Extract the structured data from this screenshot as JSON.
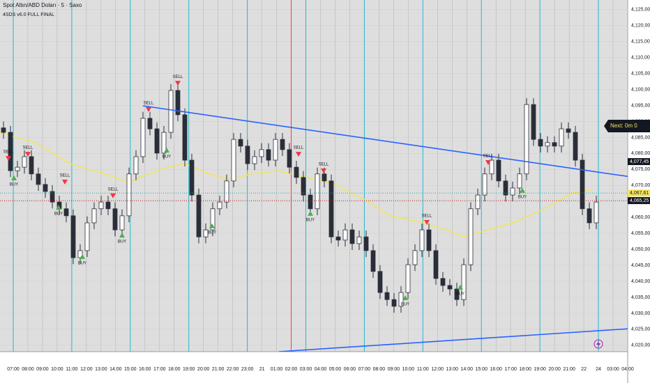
{
  "chart_data": {
    "type": "candlestick",
    "title": "Spot Altın/ABD Doları · 5 · Saxo",
    "subtitle": "4SDS v6.0 FULL FINAL",
    "color": "#2a2e39",
    "open": [
      4088.0,
      4086.6,
      4074.6,
      4075.7,
      4079.0,
      4073.6,
      4070.3,
      4068.1,
      4064.8,
      4062.7,
      4060.5,
      4047.4,
      4049.6,
      4058.3,
      4062.7,
      4064.8,
      4062.7,
      4056.1,
      4060.5,
      4073.6,
      4079.0,
      4091.0,
      4087.7,
      4080.1,
      4086.6,
      4099.7,
      4092.1,
      4077.9,
      4067.0,
      4053.9,
      4056.1,
      4062.7,
      4064.8,
      4071.4,
      4084.4,
      4082.3,
      4076.8,
      4079.0,
      4081.2,
      4077.9,
      4084.4,
      4081.2,
      4075.7,
      4072.5,
      4067.0,
      4062.7,
      4073.6,
      4071.4,
      4053.9,
      4052.9,
      4056.1,
      4051.8,
      4053.9,
      4049.6,
      4043.1,
      4036.5,
      4034.3,
      4032.2,
      4036.5,
      4045.2,
      4049.6,
      4056.1,
      4049.6,
      4040.9,
      4038.7,
      4037.6,
      4034.3,
      4045.2,
      4062.7,
      4067.0,
      4073.6,
      4077.9,
      4071.4,
      4067.0,
      4069.2,
      4073.6,
      4095.3,
      4084.4,
      4082.3,
      4083.4,
      4082.3,
      4087.7,
      4086.6,
      4077.9,
      4062.7,
      4058.3
    ],
    "high": [
      4090.0,
      4088.6,
      4077.7,
      4081.0,
      4081.0,
      4075.6,
      4072.3,
      4070.1,
      4066.8,
      4064.7,
      4062.5,
      4051.6,
      4060.3,
      4064.7,
      4066.8,
      4066.8,
      4064.7,
      4062.5,
      4075.6,
      4081.0,
      4093.0,
      4093.0,
      4089.7,
      4088.6,
      4101.7,
      4101.7,
      4094.1,
      4079.9,
      4069.0,
      4058.1,
      4064.7,
      4066.8,
      4073.4,
      4086.4,
      4086.4,
      4084.3,
      4081.0,
      4083.2,
      4083.2,
      4086.4,
      4086.4,
      4083.2,
      4077.7,
      4074.5,
      4069.0,
      4075.6,
      4075.6,
      4073.4,
      4055.9,
      4058.1,
      4058.1,
      4055.9,
      4055.9,
      4051.6,
      4045.1,
      4038.5,
      4036.3,
      4038.5,
      4047.2,
      4051.6,
      4058.1,
      4058.1,
      4051.6,
      4042.9,
      4040.7,
      4039.6,
      4047.2,
      4064.7,
      4069.0,
      4075.6,
      4079.9,
      4079.9,
      4073.4,
      4071.2,
      4075.6,
      4097.3,
      4097.3,
      4086.4,
      4085.4,
      4085.4,
      4089.7,
      4089.7,
      4088.6,
      4079.9,
      4064.7,
      4066.8
    ],
    "low": [
      4084.6,
      4072.6,
      4072.6,
      4073.7,
      4071.6,
      4068.3,
      4066.1,
      4062.8,
      4060.7,
      4058.5,
      4045.4,
      4045.4,
      4047.6,
      4056.3,
      4060.7,
      4060.7,
      4054.1,
      4054.1,
      4058.5,
      4071.6,
      4077.0,
      4085.7,
      4078.1,
      4078.1,
      4084.6,
      4090.1,
      4075.9,
      4065.0,
      4051.9,
      4051.9,
      4054.1,
      4060.7,
      4062.8,
      4069.4,
      4080.3,
      4074.8,
      4074.8,
      4077.0,
      4075.9,
      4075.9,
      4079.2,
      4073.7,
      4070.5,
      4065.0,
      4060.7,
      4060.7,
      4069.4,
      4051.9,
      4050.9,
      4050.9,
      4049.8,
      4049.8,
      4047.6,
      4041.1,
      4034.5,
      4032.3,
      4030.2,
      4030.2,
      4034.5,
      4043.2,
      4047.6,
      4047.6,
      4038.9,
      4036.7,
      4035.6,
      4032.3,
      4032.3,
      4043.2,
      4060.7,
      4065.0,
      4071.6,
      4069.4,
      4065.0,
      4065.0,
      4067.2,
      4071.6,
      4082.4,
      4080.3,
      4080.3,
      4080.3,
      4080.3,
      4084.6,
      4075.9,
      4060.7,
      4056.3,
      4056.3
    ],
    "close": [
      4086.6,
      4074.6,
      4075.7,
      4079.0,
      4073.6,
      4070.3,
      4068.1,
      4064.8,
      4062.7,
      4060.5,
      4047.4,
      4049.6,
      4058.3,
      4062.7,
      4064.8,
      4062.7,
      4056.1,
      4060.5,
      4073.6,
      4079.0,
      4091.0,
      4087.7,
      4080.1,
      4086.6,
      4099.7,
      4092.1,
      4077.9,
      4067.0,
      4053.9,
      4056.1,
      4062.7,
      4064.8,
      4071.4,
      4084.4,
      4082.3,
      4076.8,
      4079.0,
      4081.2,
      4077.9,
      4084.4,
      4081.2,
      4075.7,
      4072.5,
      4067.0,
      4062.7,
      4073.6,
      4071.4,
      4053.9,
      4052.9,
      4056.1,
      4051.8,
      4053.9,
      4049.6,
      4043.1,
      4036.5,
      4034.3,
      4032.2,
      4036.5,
      4045.2,
      4049.6,
      4056.1,
      4049.6,
      4040.9,
      4038.7,
      4037.6,
      4034.3,
      4045.2,
      4062.7,
      4067.0,
      4073.6,
      4077.9,
      4071.4,
      4067.0,
      4069.2,
      4073.6,
      4095.3,
      4084.4,
      4082.3,
      4083.4,
      4082.3,
      4087.7,
      4086.6,
      4077.9,
      4062.7,
      4058.3,
      4064.8
    ],
    "moving_average": {
      "color": "#f2e45c",
      "x": [
        -0.5,
        4.5,
        9.5,
        14.5,
        18,
        19.5,
        23.5,
        26,
        29.5,
        32.5,
        35.5,
        39.5,
        43.5,
        47.5,
        51.5,
        55.5,
        59.5,
        63.5,
        66,
        69.5,
        73.5,
        77.5,
        81.5,
        84.5
      ],
      "values": [
        4086.6,
        4083.4,
        4076.8,
        4073.6,
        4070.9,
        4072.5,
        4075.7,
        4076.8,
        4073.6,
        4071.8,
        4073.6,
        4074.6,
        4072.5,
        4070.3,
        4065.9,
        4060.5,
        4058.7,
        4056.1,
        4053.9,
        4056.1,
        4058.7,
        4062.7,
        4067.5,
        4068.8
      ]
    },
    "trendlines": [
      {
        "color": "#2962ff",
        "x": [
          20,
          92.7
        ],
        "values": [
          4094.9,
          4071.8
        ]
      },
      {
        "color": "#2962ff",
        "x": [
          39.5,
          92.7
        ],
        "values": [
          4018.0,
          4025.6
        ]
      }
    ],
    "signals": [
      {
        "label": "SELL",
        "color": "#f23645",
        "x": 0.7,
        "y": 4080.5
      },
      {
        "label": "SELL",
        "color": "#f23645",
        "x": 3.5,
        "y": 4081.8
      },
      {
        "label": "SELL",
        "color": "#f23645",
        "x": 8.8,
        "y": 4073.1
      },
      {
        "label": "SELL",
        "color": "#f23645",
        "x": 15.7,
        "y": 4068.8
      },
      {
        "label": "SELL",
        "color": "#f23645",
        "x": 20.8,
        "y": 4095.8
      },
      {
        "label": "SELL",
        "color": "#f23645",
        "x": 25,
        "y": 4104.0
      },
      {
        "label": "SELL",
        "color": "#f23645",
        "x": 42.3,
        "y": 4081.8
      },
      {
        "label": "SELL",
        "color": "#f23645",
        "x": 45.9,
        "y": 4076.6
      },
      {
        "label": "SELL",
        "color": "#f23645",
        "x": 60.7,
        "y": 4060.5
      },
      {
        "label": "SELL",
        "color": "#f23645",
        "x": 69.5,
        "y": 4079.2
      },
      {
        "label": "BUY",
        "color": "#4caf50",
        "x": 1.5,
        "y": 4070.3
      },
      {
        "label": "BUY",
        "color": "#4caf50",
        "x": 7.9,
        "y": 4061.1
      },
      {
        "label": "BUY",
        "color": "#4caf50",
        "x": 11.3,
        "y": 4045.7
      },
      {
        "label": "BUY",
        "color": "#4caf50",
        "x": 17,
        "y": 4052.4
      },
      {
        "label": "BUY",
        "color": "#4caf50",
        "x": 23.4,
        "y": 4079.0
      },
      {
        "label": "BUY",
        "color": "#4caf50",
        "x": 29.9,
        "y": 4055.3
      },
      {
        "label": "BUY",
        "color": "#4caf50",
        "x": 44,
        "y": 4059.2
      },
      {
        "label": "BUY",
        "color": "#4caf50",
        "x": 57.6,
        "y": 4032.8
      },
      {
        "label": "BUY",
        "color": "#4caf50",
        "x": 65.5,
        "y": 4036.1
      },
      {
        "label": "BUY",
        "color": "#4caf50",
        "x": 74.4,
        "y": 4066.4
      }
    ],
    "price_labels": [
      {
        "value": 4077.45,
        "label": "4,077,45",
        "color": "#131722"
      },
      {
        "value": 4067.61,
        "label": "4,067,61",
        "color": "#f2e45c"
      },
      {
        "value": 4065.25,
        "label": "4,065,25",
        "color": "#131722"
      }
    ],
    "countdown": "Next: 0m 0",
    "x_labels": [
      "07:00",
      "08:00",
      "09:00",
      "10:00",
      "11:00",
      "12:00",
      "13:00",
      "14:00",
      "15:00",
      "16:00",
      "17:00",
      "18:00",
      "19:00",
      "20:00",
      "21:00",
      "22:00",
      "23:00",
      "21",
      "01:00",
      "02:00",
      "03:00",
      "04:00",
      "05:00",
      "06:00",
      "07:00",
      "08:00",
      "09:00",
      "10:00",
      "11:00",
      "12:00",
      "13:00",
      "14:00",
      "15:00",
      "16:00",
      "17:00",
      "18:00",
      "19:00",
      "20:00",
      "21:00",
      "22",
      "24",
      "03:00",
      "04:00"
    ],
    "ylim": [
      4018,
      4128
    ],
    "yticks": [
      {
        "value": 4020,
        "label": "4,020,00"
      },
      {
        "value": 4025,
        "label": "4,025,00"
      },
      {
        "value": 4030,
        "label": "4,030,00"
      },
      {
        "value": 4035,
        "label": "4,035,00"
      },
      {
        "value": 4040,
        "label": "4,040,00"
      },
      {
        "value": 4045,
        "label": "4,045,00"
      },
      {
        "value": 4050,
        "label": "4,050,00"
      },
      {
        "value": 4055,
        "label": "4,055,00"
      },
      {
        "value": 4060,
        "label": "4,060,00"
      },
      {
        "value": 4065,
        "label": "4,065,00"
      },
      {
        "value": 4070,
        "label": "4,070,00"
      },
      {
        "value": 4075,
        "label": "4,075,00"
      },
      {
        "value": 4080,
        "label": "4,080,00"
      },
      {
        "value": 4085,
        "label": "4,085,00"
      },
      {
        "value": 4090,
        "label": "4,090,00"
      },
      {
        "value": 4095,
        "label": "4,095,00"
      },
      {
        "value": 4100,
        "label": "4,100,00"
      },
      {
        "value": 4105,
        "label": "4,105,00"
      },
      {
        "value": 4110,
        "label": "4,110,00"
      },
      {
        "value": 4115,
        "label": "4,115,00"
      },
      {
        "value": 4120,
        "label": "4,120,00"
      },
      {
        "value": 4125,
        "label": "4,125,00"
      }
    ]
  }
}
